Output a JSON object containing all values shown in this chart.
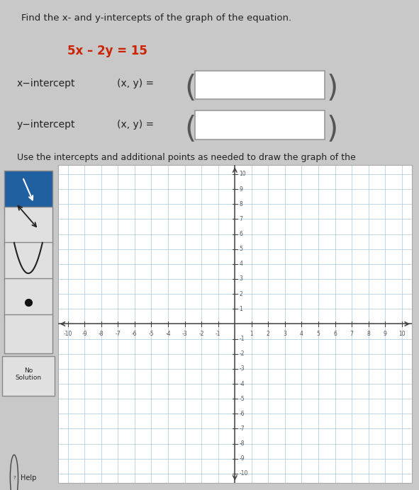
{
  "bg_color": "#c8c8c8",
  "title_text": "Find the x- and y-intercepts of the graph of the equation.",
  "equation": "5x – 2y = 15",
  "equation_color": "#cc2200",
  "xlabel_text": "x−intercept",
  "ylabel_text": "y−intercept",
  "xy_label": "(x, y) =",
  "use_text": "Use the intercepts and additional points as needed to draw the graph of the",
  "grid_color": "#a8c8dc",
  "axis_color": "#444444",
  "tick_color": "#555555",
  "tick_labels_x": [
    -10,
    -9,
    -8,
    -7,
    -6,
    -5,
    -4,
    -3,
    -2,
    -1,
    1,
    2,
    3,
    4,
    5,
    6,
    7,
    8,
    9,
    10
  ],
  "tick_labels_y": [
    -10,
    -9,
    -8,
    -7,
    -6,
    -5,
    -4,
    -3,
    -2,
    -1,
    1,
    2,
    3,
    4,
    5,
    6,
    7,
    8,
    9,
    10
  ],
  "no_solution_text": "No\nSolution",
  "help_text": "Help",
  "toolbar_btn_color": "#2060a0",
  "toolbar_bg": "#c0c0c0",
  "graph_bg": "white",
  "graph_border": "#aaaaaa",
  "box_color": "white",
  "box_edge": "#999999"
}
